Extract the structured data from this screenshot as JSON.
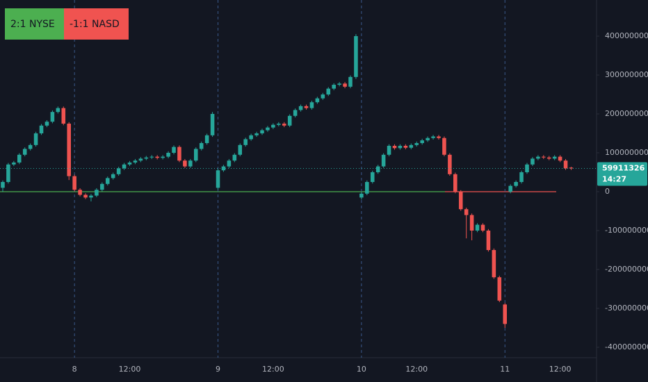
{
  "chart_data": {
    "type": "candlestick",
    "badges": [
      {
        "text": "2:1 NYSE",
        "color": "#4caf50"
      },
      {
        "text": "-1:1 NASD",
        "color": "#f05350"
      }
    ],
    "up_color": "#26a69a",
    "down_color": "#ef5350",
    "x": [
      -13,
      -12,
      -11,
      -10,
      -9,
      -8,
      -7,
      -6,
      -5,
      -4,
      -3,
      -2,
      -1,
      0,
      1,
      2,
      3,
      4,
      5,
      6,
      7,
      8,
      9,
      10,
      11,
      12,
      13,
      14,
      15,
      16,
      17,
      18,
      19,
      20,
      21,
      22,
      23,
      24,
      25,
      26,
      27,
      28,
      29,
      30,
      31,
      32,
      33,
      34,
      35,
      36,
      37,
      38,
      39,
      40,
      41,
      42,
      43,
      44,
      45,
      46,
      47,
      48,
      49,
      50,
      51,
      52,
      53,
      54,
      55,
      56,
      57,
      58,
      59,
      60,
      61,
      62,
      63,
      64,
      65,
      66,
      67,
      68,
      69,
      70,
      71,
      72,
      73,
      74,
      75,
      76,
      77,
      78,
      79,
      80,
      81,
      82,
      83,
      84,
      85,
      86,
      87,
      88,
      89,
      90
    ],
    "open": [
      10000000.0,
      25000000.0,
      70000000.0,
      75000000.0,
      95000000.0,
      110000000.0,
      120000000.0,
      150000000.0,
      170000000.0,
      180000000.0,
      205000000.0,
      215000000.0,
      175000000.0,
      40000000.0,
      5000000.0,
      -8000000.0,
      -15000000.0,
      -10000000.0,
      5000000.0,
      20000000.0,
      35000000.0,
      45000000.0,
      60000000.0,
      70000000.0,
      75000000.0,
      80000000.0,
      85000000.0,
      88000000.0,
      90000000.0,
      87000000.0,
      90000000.0,
      100000000.0,
      115000000.0,
      80000000.0,
      65000000.0,
      80000000.0,
      110000000.0,
      125000000.0,
      145000000.0,
      10000000.0,
      55000000.0,
      65000000.0,
      80000000.0,
      95000000.0,
      120000000.0,
      135000000.0,
      145000000.0,
      150000000.0,
      158000000.0,
      165000000.0,
      172000000.0,
      175000000.0,
      170000000.0,
      195000000.0,
      210000000.0,
      220000000.0,
      215000000.0,
      230000000.0,
      240000000.0,
      250000000.0,
      265000000.0,
      275000000.0,
      278000000.0,
      270000000.0,
      295000000.0,
      -15000000.0,
      -5000000.0,
      25000000.0,
      50000000.0,
      65000000.0,
      95000000.0,
      118000000.0,
      112000000.0,
      118000000.0,
      113000000.0,
      120000000.0,
      125000000.0,
      132000000.0,
      138000000.0,
      142000000.0,
      138000000.0,
      95000000.0,
      45000000.0,
      0,
      -45000000.0,
      -60000000.0,
      -100000000.0,
      -85000000.0,
      -100000000.0,
      -150000000.0,
      -220000000.0,
      -290000000.0,
      0,
      15000000.0,
      25000000.0,
      50000000.0,
      70000000.0,
      85000000.0,
      90000000.0,
      88000000.0,
      85000000.0,
      90000000.0,
      80000000.0,
      62000000.0
    ],
    "high": [
      29000000.0,
      74000000.0,
      79000000.0,
      99000000.0,
      114000000.0,
      124000000.0,
      154000000.0,
      174000000.0,
      184000000.0,
      209000000.0,
      219000000.0,
      219000000.0,
      179000000.0,
      44000000.0,
      9000000.0,
      -4000000.0,
      -6000000.0,
      9000000.0,
      24000000.0,
      39000000.0,
      49000000.0,
      64000000.0,
      74000000.0,
      79000000.0,
      84000000.0,
      89000000.0,
      92000000.0,
      94000000.0,
      94000000.0,
      94000000.0,
      104000000.0,
      119000000.0,
      119000000.0,
      84000000.0,
      84000000.0,
      114000000.0,
      129000000.0,
      149000000.0,
      205000000.0,
      59000000.0,
      69000000.0,
      84000000.0,
      99000000.0,
      124000000.0,
      139000000.0,
      149000000.0,
      154000000.0,
      162000000.0,
      169000000.0,
      176000000.0,
      179000000.0,
      179000000.0,
      199000000.0,
      214000000.0,
      224000000.0,
      224000000.0,
      234000000.0,
      244000000.0,
      254000000.0,
      269000000.0,
      279000000.0,
      282000000.0,
      282000000.0,
      299000000.0,
      405000000.0,
      -1000000.0,
      29000000.0,
      54000000.0,
      69000000.0,
      99000000.0,
      122000000.0,
      122000000.0,
      122000000.0,
      122000000.0,
      124000000.0,
      129000000.0,
      136000000.0,
      142000000.0,
      146000000.0,
      146000000.0,
      142000000.0,
      99000000.0,
      49000000.0,
      4000000.0,
      -41000000.0,
      -56000000.0,
      -81000000.0,
      -81000000.0,
      -96000000.0,
      -146000000.0,
      -216000000.0,
      -286000000.0,
      19000000.0,
      29000000.0,
      54000000.0,
      74000000.0,
      89000000.0,
      94000000.0,
      94000000.0,
      92000000.0,
      94000000.0,
      94000000.0,
      84000000.0,
      64000000.0
    ],
    "low": [
      0,
      21000000.0,
      66000000.0,
      71000000.0,
      91000000.0,
      106000000.0,
      116000000.0,
      146000000.0,
      166000000.0,
      176000000.0,
      201000000.0,
      171000000.0,
      30000000.0,
      1000000.0,
      -12000000.0,
      -19000000.0,
      -25000000.0,
      -14000000.0,
      1000000.0,
      16000000.0,
      31000000.0,
      41000000.0,
      56000000.0,
      66000000.0,
      71000000.0,
      76000000.0,
      81000000.0,
      84000000.0,
      83000000.0,
      83000000.0,
      86000000.0,
      96000000.0,
      76000000.0,
      61000000.0,
      61000000.0,
      76000000.0,
      106000000.0,
      121000000.0,
      141000000.0,
      5000000.0,
      51000000.0,
      61000000.0,
      76000000.0,
      91000000.0,
      116000000.0,
      131000000.0,
      141000000.0,
      146000000.0,
      154000000.0,
      161000000.0,
      168000000.0,
      166000000.0,
      166000000.0,
      191000000.0,
      206000000.0,
      211000000.0,
      211000000.0,
      226000000.0,
      236000000.0,
      246000000.0,
      261000000.0,
      271000000.0,
      266000000.0,
      266000000.0,
      290000000.0,
      -20000000.0,
      -9000000.0,
      21000000.0,
      46000000.0,
      61000000.0,
      91000000.0,
      108000000.0,
      108000000.0,
      109000000.0,
      109000000.0,
      116000000.0,
      121000000.0,
      128000000.0,
      134000000.0,
      134000000.0,
      91000000.0,
      41000000.0,
      -4000000.0,
      -49000000.0,
      -120000000.0,
      -125000000.0,
      -104000000.0,
      -104000000.0,
      -154000000.0,
      -224000000.0,
      -284000000.0,
      -350000000.0,
      -4000000.0,
      11000000.0,
      21000000.0,
      46000000.0,
      66000000.0,
      81000000.0,
      84000000.0,
      81000000.0,
      81000000.0,
      76000000.0,
      56000000.0,
      56000000.0
    ],
    "close": [
      25000000.0,
      70000000.0,
      75000000.0,
      95000000.0,
      110000000.0,
      120000000.0,
      150000000.0,
      170000000.0,
      180000000.0,
      205000000.0,
      215000000.0,
      175000000.0,
      40000000.0,
      5000000.0,
      -8000000.0,
      -15000000.0,
      -10000000.0,
      5000000.0,
      20000000.0,
      35000000.0,
      45000000.0,
      60000000.0,
      70000000.0,
      75000000.0,
      80000000.0,
      85000000.0,
      88000000.0,
      90000000.0,
      87000000.0,
      90000000.0,
      100000000.0,
      115000000.0,
      80000000.0,
      65000000.0,
      80000000.0,
      110000000.0,
      125000000.0,
      145000000.0,
      200000000.0,
      55000000.0,
      65000000.0,
      80000000.0,
      95000000.0,
      120000000.0,
      135000000.0,
      145000000.0,
      150000000.0,
      158000000.0,
      165000000.0,
      172000000.0,
      175000000.0,
      170000000.0,
      195000000.0,
      210000000.0,
      220000000.0,
      215000000.0,
      230000000.0,
      240000000.0,
      250000000.0,
      265000000.0,
      275000000.0,
      278000000.0,
      270000000.0,
      295000000.0,
      400000000.0,
      -5000000.0,
      25000000.0,
      50000000.0,
      65000000.0,
      95000000.0,
      118000000.0,
      112000000.0,
      118000000.0,
      113000000.0,
      120000000.0,
      125000000.0,
      132000000.0,
      138000000.0,
      142000000.0,
      138000000.0,
      95000000.0,
      45000000.0,
      0,
      -45000000.0,
      -60000000.0,
      -100000000.0,
      -85000000.0,
      -100000000.0,
      -150000000.0,
      -220000000.0,
      -280000000.0,
      -340000000.0,
      15000000.0,
      25000000.0,
      50000000.0,
      70000000.0,
      85000000.0,
      90000000.0,
      88000000.0,
      85000000.0,
      90000000.0,
      80000000.0,
      60000000.0,
      59911326
    ],
    "last_price": 59911326,
    "countdown": "14:27",
    "xlim": [
      -13.5,
      94.6
    ],
    "xticks": [
      {
        "value": 0,
        "label": "8"
      },
      {
        "value": 10,
        "label": "12:00"
      },
      {
        "value": 26,
        "label": "9"
      },
      {
        "value": 36,
        "label": "12:00"
      },
      {
        "value": 52,
        "label": "10"
      },
      {
        "value": 62,
        "label": "12:00"
      },
      {
        "value": 78,
        "label": "11"
      },
      {
        "value": 88,
        "label": "12:00"
      }
    ],
    "ylim": [
      -426800000,
      492900000
    ],
    "yticks": [
      -400000000,
      -300000000,
      -200000000,
      -100000000,
      0,
      100000000,
      200000000,
      300000000,
      400000000
    ]
  }
}
